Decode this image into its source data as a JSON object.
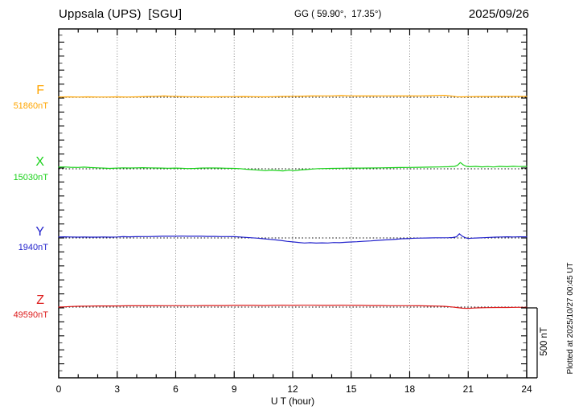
{
  "header": {
    "station": "Uppsala (UPS)  [SGU]",
    "coords": "GG ( 59.90°,  17.35°)",
    "date": "2025/09/26"
  },
  "channels": [
    {
      "label": "F",
      "value": "51860nT",
      "color": "#FFA500"
    },
    {
      "label": "X",
      "value": "15030nT",
      "color": "#19D119"
    },
    {
      "label": "Y",
      "value": "1940nT",
      "color": "#2222CC"
    },
    {
      "label": "Z",
      "value": "49590nT",
      "color": "#DD1C1C"
    }
  ],
  "axis": {
    "x_label": "U T (hour)",
    "x_tick_labels": [
      "0",
      "3",
      "6",
      "9",
      "12",
      "15",
      "18",
      "21",
      "24"
    ]
  },
  "scale_bar": {
    "label": "500 nT",
    "nT": 500
  },
  "footer_note": "Plotted at 2025/10/27 00:45 UT",
  "chart_data": {
    "type": "line",
    "title": "Uppsala (UPS) [SGU] magnetogram, 2025/09/26",
    "xlabel": "U T (hour)",
    "x_range": [
      0,
      24
    ],
    "x_ticks": [
      0,
      3,
      6,
      9,
      12,
      15,
      18,
      21,
      24
    ],
    "grid": "vertical dotted every 3 h; dotted horizontal baseline per channel",
    "scale_bar_nT": 500,
    "units": "points are [UT hour, deviation in nT from channel baseline]",
    "series": [
      {
        "name": "F",
        "baseline_nT": 51860,
        "color": "#FFA500",
        "points": [
          [
            0,
            2
          ],
          [
            0.5,
            3
          ],
          [
            1,
            2
          ],
          [
            1.5,
            3
          ],
          [
            2,
            2
          ],
          [
            2.5,
            2
          ],
          [
            3,
            3
          ],
          [
            3.5,
            2
          ],
          [
            4,
            3
          ],
          [
            4.5,
            5
          ],
          [
            5,
            7
          ],
          [
            5.4,
            9
          ],
          [
            5.8,
            7
          ],
          [
            6.2,
            5
          ],
          [
            6.6,
            4
          ],
          [
            7,
            4
          ],
          [
            7.5,
            3
          ],
          [
            8,
            3
          ],
          [
            8.5,
            4
          ],
          [
            9,
            4
          ],
          [
            9.5,
            5
          ],
          [
            10,
            4
          ],
          [
            10.5,
            3
          ],
          [
            11,
            4
          ],
          [
            11.5,
            6
          ],
          [
            12,
            7
          ],
          [
            12.5,
            8
          ],
          [
            13,
            9
          ],
          [
            13.5,
            10
          ],
          [
            14,
            10
          ],
          [
            14.5,
            12
          ],
          [
            15,
            10
          ],
          [
            15.5,
            9
          ],
          [
            16,
            9
          ],
          [
            16.5,
            10
          ],
          [
            17,
            10
          ],
          [
            17.5,
            9
          ],
          [
            18,
            9
          ],
          [
            18.5,
            10
          ],
          [
            19,
            11
          ],
          [
            19.5,
            13
          ],
          [
            19.8,
            14
          ],
          [
            20.1,
            10
          ],
          [
            20.4,
            4
          ],
          [
            20.7,
            3
          ],
          [
            21,
            4
          ],
          [
            21.5,
            5
          ],
          [
            22,
            5
          ],
          [
            22.5,
            6
          ],
          [
            23,
            6
          ],
          [
            23.5,
            6
          ],
          [
            24,
            6
          ]
        ]
      },
      {
        "name": "X",
        "baseline_nT": 15030,
        "color": "#19D119",
        "points": [
          [
            0,
            12
          ],
          [
            0.3,
            13
          ],
          [
            0.6,
            11
          ],
          [
            1,
            10
          ],
          [
            1.3,
            12
          ],
          [
            1.6,
            9
          ],
          [
            2,
            7
          ],
          [
            2.3,
            5
          ],
          [
            2.6,
            3
          ],
          [
            3,
            5
          ],
          [
            3.3,
            7
          ],
          [
            3.6,
            6
          ],
          [
            4,
            7
          ],
          [
            4.3,
            8
          ],
          [
            4.6,
            7
          ],
          [
            5,
            6
          ],
          [
            5.3,
            5
          ],
          [
            5.6,
            4
          ],
          [
            6,
            5
          ],
          [
            6.3,
            4
          ],
          [
            6.6,
            2
          ],
          [
            7,
            3
          ],
          [
            7.3,
            5
          ],
          [
            7.6,
            6
          ],
          [
            8,
            6
          ],
          [
            8.3,
            5
          ],
          [
            8.6,
            4
          ],
          [
            9,
            3
          ],
          [
            9.3,
            1
          ],
          [
            9.6,
            -3
          ],
          [
            10,
            -7
          ],
          [
            10.3,
            -10
          ],
          [
            10.6,
            -13
          ],
          [
            10.9,
            -9
          ],
          [
            11.2,
            -12
          ],
          [
            11.5,
            -15
          ],
          [
            11.8,
            -10
          ],
          [
            12.1,
            -13
          ],
          [
            12.4,
            -8
          ],
          [
            12.7,
            -5
          ],
          [
            13,
            -2
          ],
          [
            13.3,
            1
          ],
          [
            13.6,
            2
          ],
          [
            14,
            3
          ],
          [
            14.5,
            4
          ],
          [
            15,
            5
          ],
          [
            15.5,
            5
          ],
          [
            16,
            6
          ],
          [
            16.5,
            7
          ],
          [
            17,
            8
          ],
          [
            17.5,
            9
          ],
          [
            18,
            10
          ],
          [
            18.5,
            11
          ],
          [
            19,
            12
          ],
          [
            19.5,
            13
          ],
          [
            20,
            15
          ],
          [
            20.3,
            17
          ],
          [
            20.45,
            25
          ],
          [
            20.6,
            45
          ],
          [
            20.75,
            28
          ],
          [
            20.9,
            18
          ],
          [
            21.1,
            15
          ],
          [
            21.4,
            17
          ],
          [
            21.7,
            14
          ],
          [
            22,
            16
          ],
          [
            22.3,
            13
          ],
          [
            22.6,
            17
          ],
          [
            23,
            15
          ],
          [
            23.3,
            18
          ],
          [
            23.6,
            16
          ],
          [
            24,
            17
          ]
        ]
      },
      {
        "name": "Y",
        "baseline_nT": 1940,
        "color": "#2222CC",
        "points": [
          [
            0,
            7
          ],
          [
            0.3,
            8
          ],
          [
            0.6,
            7
          ],
          [
            1,
            6
          ],
          [
            1.3,
            7
          ],
          [
            1.6,
            6
          ],
          [
            2,
            6
          ],
          [
            2.3,
            7
          ],
          [
            2.6,
            6
          ],
          [
            3,
            7
          ],
          [
            3.3,
            9
          ],
          [
            3.6,
            8
          ],
          [
            4,
            9
          ],
          [
            4.3,
            10
          ],
          [
            4.6,
            10
          ],
          [
            5,
            11
          ],
          [
            5.3,
            12
          ],
          [
            5.6,
            12
          ],
          [
            6,
            12
          ],
          [
            6.3,
            13
          ],
          [
            6.6,
            12
          ],
          [
            7,
            12
          ],
          [
            7.3,
            12
          ],
          [
            7.6,
            11
          ],
          [
            8,
            11
          ],
          [
            8.3,
            10
          ],
          [
            8.6,
            10
          ],
          [
            9,
            9
          ],
          [
            9.3,
            7
          ],
          [
            9.6,
            4
          ],
          [
            9.9,
            1
          ],
          [
            10.2,
            -2
          ],
          [
            10.5,
            -6
          ],
          [
            10.8,
            -10
          ],
          [
            11.1,
            -14
          ],
          [
            11.4,
            -18
          ],
          [
            11.7,
            -24
          ],
          [
            12,
            -28
          ],
          [
            12.3,
            -32
          ],
          [
            12.6,
            -36
          ],
          [
            12.9,
            -34
          ],
          [
            13.2,
            -37
          ],
          [
            13.5,
            -35
          ],
          [
            13.8,
            -36
          ],
          [
            14.1,
            -33
          ],
          [
            14.4,
            -34
          ],
          [
            14.7,
            -31
          ],
          [
            15,
            -29
          ],
          [
            15.3,
            -27
          ],
          [
            15.6,
            -24
          ],
          [
            16,
            -21
          ],
          [
            16.3,
            -18
          ],
          [
            16.6,
            -15
          ],
          [
            17,
            -12
          ],
          [
            17.3,
            -9
          ],
          [
            17.6,
            -6
          ],
          [
            18,
            -4
          ],
          [
            18.3,
            -2
          ],
          [
            18.6,
            -1
          ],
          [
            19,
            0
          ],
          [
            19.3,
            1
          ],
          [
            19.6,
            1
          ],
          [
            20,
            2
          ],
          [
            20.2,
            3
          ],
          [
            20.4,
            8
          ],
          [
            20.55,
            30
          ],
          [
            20.7,
            12
          ],
          [
            20.85,
            2
          ],
          [
            21,
            -4
          ],
          [
            21.2,
            -2
          ],
          [
            21.5,
            0
          ],
          [
            21.8,
            2
          ],
          [
            22.1,
            4
          ],
          [
            22.4,
            6
          ],
          [
            22.7,
            7
          ],
          [
            23,
            8
          ],
          [
            23.3,
            7
          ],
          [
            23.6,
            8
          ],
          [
            24,
            8
          ]
        ]
      },
      {
        "name": "Z",
        "baseline_nT": 49590,
        "color": "#DD1C1C",
        "points": [
          [
            0,
            0
          ],
          [
            0.3,
            2
          ],
          [
            0.6,
            4
          ],
          [
            1,
            6
          ],
          [
            1.5,
            7
          ],
          [
            2,
            8
          ],
          [
            2.5,
            8
          ],
          [
            3,
            8
          ],
          [
            3.5,
            9
          ],
          [
            4,
            9
          ],
          [
            4.5,
            9
          ],
          [
            5,
            9
          ],
          [
            5.5,
            10
          ],
          [
            6,
            10
          ],
          [
            6.5,
            10
          ],
          [
            7,
            10
          ],
          [
            7.5,
            11
          ],
          [
            8,
            11
          ],
          [
            8.5,
            11
          ],
          [
            9,
            12
          ],
          [
            9.5,
            12
          ],
          [
            10,
            12
          ],
          [
            10.5,
            11
          ],
          [
            11,
            12
          ],
          [
            11.5,
            13
          ],
          [
            12,
            12
          ],
          [
            12.5,
            13
          ],
          [
            13,
            13
          ],
          [
            13.5,
            12
          ],
          [
            14,
            12
          ],
          [
            14.5,
            13
          ],
          [
            15,
            12
          ],
          [
            15.5,
            12
          ],
          [
            16,
            11
          ],
          [
            16.5,
            11
          ],
          [
            17,
            10
          ],
          [
            17.5,
            10
          ],
          [
            18,
            10
          ],
          [
            18.5,
            9
          ],
          [
            19,
            8
          ],
          [
            19.5,
            7
          ],
          [
            19.8,
            5
          ],
          [
            20.1,
            2
          ],
          [
            20.4,
            -3
          ],
          [
            20.7,
            -8
          ],
          [
            21,
            -9
          ],
          [
            21.3,
            -7
          ],
          [
            21.6,
            -5
          ],
          [
            22,
            -4
          ],
          [
            22.5,
            -3
          ],
          [
            23,
            -3
          ],
          [
            23.5,
            -2
          ],
          [
            24,
            -2
          ]
        ]
      }
    ]
  }
}
